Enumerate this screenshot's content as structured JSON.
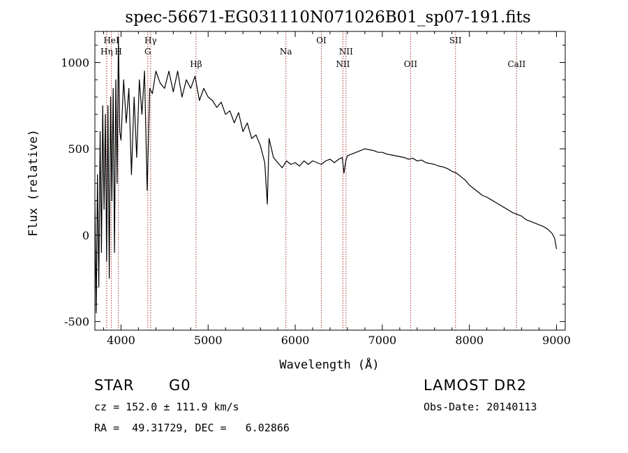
{
  "chart_data": {
    "type": "line",
    "title": "spec-56671-EG031110N071026B01_sp07-191.fits",
    "xlabel": "Wavelength (Å)",
    "ylabel": "Flux (relative)",
    "xlim": [
      3700,
      9100
    ],
    "ylim": [
      -550,
      1180
    ],
    "xticks": [
      4000,
      5000,
      6000,
      7000,
      8000,
      9000
    ],
    "yticks": [
      -500,
      0,
      500,
      1000
    ],
    "grid": false,
    "line_color": "#000000",
    "marker_line_color": "#b03030",
    "series": [
      {
        "x": [
          3700,
          3715,
          3730,
          3745,
          3760,
          3775,
          3790,
          3805,
          3820,
          3835,
          3850,
          3865,
          3880,
          3895,
          3910,
          3925,
          3940,
          3955,
          3970,
          3985,
          4000,
          4030,
          4060,
          4090,
          4120,
          4150,
          4180,
          4210,
          4240,
          4270,
          4300,
          4330,
          4360,
          4400,
          4450,
          4500,
          4550,
          4600,
          4650,
          4700,
          4750,
          4800,
          4850,
          4900,
          4950,
          5000,
          5050,
          5100,
          5150,
          5200,
          5250,
          5300,
          5350,
          5400,
          5450,
          5500,
          5550,
          5600,
          5650,
          5680,
          5700,
          5750,
          5800,
          5850,
          5900,
          5950,
          6000,
          6050,
          6100,
          6150,
          6200,
          6250,
          6300,
          6350,
          6400,
          6450,
          6500,
          6540,
          6560,
          6580,
          6600,
          6650,
          6700,
          6750,
          6800,
          6850,
          6900,
          6950,
          7000,
          7050,
          7100,
          7150,
          7200,
          7250,
          7300,
          7350,
          7400,
          7450,
          7500,
          7550,
          7600,
          7650,
          7700,
          7750,
          7800,
          7850,
          7900,
          7950,
          8000,
          8050,
          8100,
          8150,
          8200,
          8250,
          8300,
          8350,
          8400,
          8450,
          8500,
          8550,
          8600,
          8650,
          8700,
          8750,
          8800,
          8850,
          8900,
          8950,
          8980,
          9000
        ],
        "y": [
          200,
          -450,
          350,
          -300,
          600,
          -100,
          750,
          150,
          700,
          -150,
          750,
          -250,
          800,
          200,
          850,
          -100,
          900,
          300,
          1150,
          600,
          550,
          900,
          650,
          850,
          350,
          800,
          450,
          900,
          700,
          950,
          260,
          850,
          820,
          950,
          880,
          850,
          950,
          830,
          950,
          800,
          900,
          850,
          920,
          780,
          850,
          800,
          780,
          740,
          770,
          700,
          720,
          650,
          710,
          600,
          650,
          560,
          580,
          520,
          420,
          180,
          560,
          450,
          420,
          390,
          430,
          410,
          420,
          400,
          430,
          410,
          430,
          420,
          410,
          430,
          440,
          420,
          440,
          450,
          360,
          430,
          460,
          470,
          480,
          490,
          500,
          495,
          490,
          480,
          480,
          470,
          465,
          460,
          455,
          450,
          440,
          445,
          430,
          435,
          420,
          415,
          410,
          400,
          395,
          385,
          370,
          360,
          340,
          320,
          290,
          270,
          250,
          230,
          220,
          205,
          190,
          175,
          160,
          145,
          130,
          120,
          110,
          90,
          80,
          70,
          60,
          50,
          35,
          10,
          -20,
          -80
        ]
      }
    ],
    "line_markers": [
      {
        "label": "Hη",
        "x": 3835,
        "row": 2
      },
      {
        "label": "HeI",
        "x": 3889,
        "row": 1
      },
      {
        "label": "H",
        "x": 3969,
        "row": 2
      },
      {
        "label": "Hγ",
        "x": 4340,
        "row": 1
      },
      {
        "label": "G",
        "x": 4307,
        "row": 2
      },
      {
        "label": "Hβ",
        "x": 4861,
        "row": 3
      },
      {
        "label": "Na",
        "x": 5893,
        "row": 2
      },
      {
        "label": "OI",
        "x": 6300,
        "row": 1
      },
      {
        "label": "NII",
        "x": 6583,
        "row": 2
      },
      {
        "label": "NII",
        "x": 6548,
        "row": 3
      },
      {
        "label": "OII",
        "x": 7325,
        "row": 3
      },
      {
        "label": "SII",
        "x": 7840,
        "row": 1
      },
      {
        "label": "CaII",
        "x": 8542,
        "row": 3
      }
    ]
  },
  "info": {
    "object_class": "STAR",
    "subclass": "G0",
    "survey": "LAMOST DR2",
    "cz": "cz = 152.0 ± 111.9 km/s",
    "obs_date": "Obs-Date: 20140113",
    "coords": "RA =  49.31729, DEC =   6.02866"
  }
}
